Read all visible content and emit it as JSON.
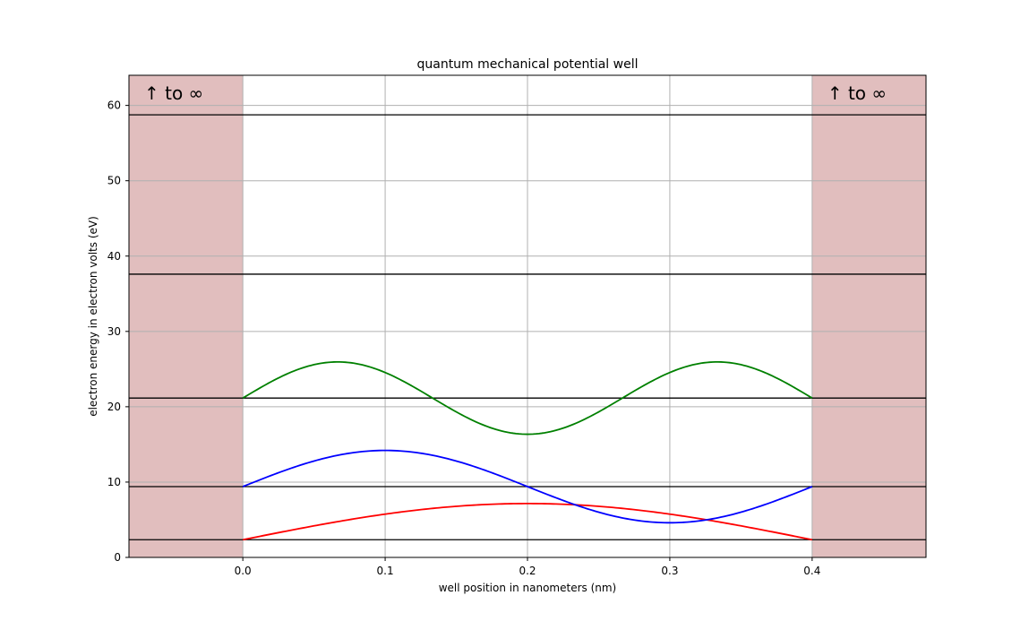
{
  "chart_data": {
    "type": "line",
    "title": "quantum mechanical potential well",
    "xlabel": "well position in nanometers (nm)",
    "ylabel": "electron energy in electron volts (eV)",
    "xlim": [
      -0.08,
      0.48
    ],
    "ylim": [
      0,
      64
    ],
    "xticks": [
      0.0,
      0.1,
      0.2,
      0.3,
      0.4
    ],
    "xtick_labels": [
      "0.0",
      "0.1",
      "0.2",
      "0.3",
      "0.4"
    ],
    "yticks": [
      0,
      10,
      20,
      30,
      40,
      50,
      60
    ],
    "ytick_labels": [
      "0",
      "10",
      "20",
      "30",
      "40",
      "50",
      "60"
    ],
    "grid": true,
    "well": {
      "left": 0.0,
      "right": 0.4,
      "wall_color": "#e1bebe"
    },
    "wall_labels": [
      "↑  to ∞",
      "↑  to ∞"
    ],
    "energy_levels": [
      2.35,
      9.4,
      21.15,
      37.6,
      58.75
    ],
    "wavefunctions": [
      {
        "color": "#ff0000",
        "n": 1,
        "baseline": 2.35,
        "amplitude": 4.8
      },
      {
        "color": "#0000ff",
        "n": 2,
        "baseline": 9.4,
        "amplitude": 4.8
      },
      {
        "color": "#008000",
        "n": 3,
        "baseline": 21.15,
        "amplitude": 4.8
      }
    ],
    "level_color": "#000000"
  }
}
